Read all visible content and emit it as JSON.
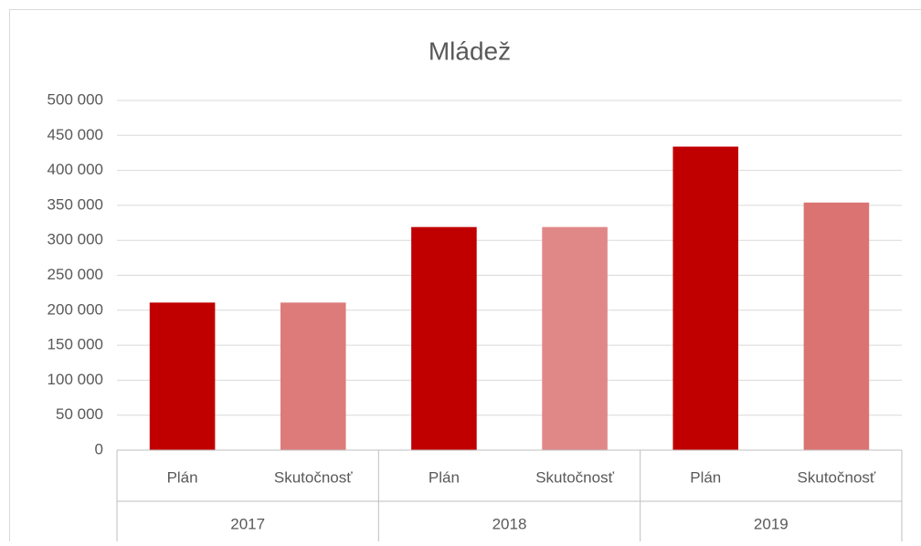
{
  "chart_data": {
    "type": "bar",
    "title": "Mládež",
    "groups": [
      "2017",
      "2018",
      "2019"
    ],
    "categories": [
      "Plán",
      "Skutočnosť",
      "Plán",
      "Skutočnosť",
      "Plán",
      "Skutočnosť"
    ],
    "values": [
      211000,
      211000,
      319000,
      319000,
      434000,
      354000
    ],
    "colors": [
      "#c00000",
      "#dd7b7b",
      "#c00000",
      "#e08888",
      "#c00000",
      "#dc7373"
    ],
    "ylim": [
      0,
      500000
    ],
    "yticks": [
      0,
      {
        "value": 50000,
        "label": "50 000"
      },
      {
        "value": 100000,
        "label": "100 000"
      },
      {
        "value": 150000,
        "label": "150 000"
      },
      {
        "value": 200000,
        "label": "200 000"
      },
      {
        "value": 250000,
        "label": "250 000"
      },
      {
        "value": 300000,
        "label": "300 000"
      },
      {
        "value": 350000,
        "label": "350 000"
      },
      {
        "value": 400000,
        "label": "400 000"
      },
      {
        "value": 450000,
        "label": "450 000"
      },
      {
        "value": 500000,
        "label": "500 000"
      }
    ],
    "grid": true
  }
}
